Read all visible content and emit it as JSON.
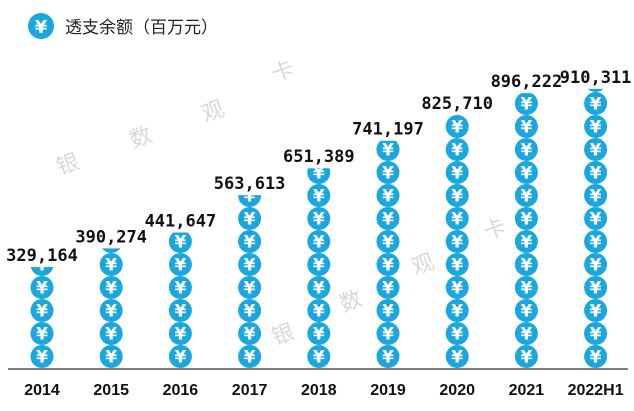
{
  "legend": {
    "icon": "yuan-coin-icon",
    "label": "透支余额（百万元）"
  },
  "colors": {
    "coin": "#1aa7df",
    "coin_symbol": "#ffffff",
    "axis": "#555555"
  },
  "watermarks": [
    "银",
    "数",
    "观",
    "卡",
    "银",
    "数",
    "观",
    "卡"
  ],
  "chart_data": {
    "type": "bar",
    "title": "透支余额（百万元）",
    "xlabel": "",
    "ylabel": "",
    "categories": [
      "2014",
      "2015",
      "2016",
      "2017",
      "2018",
      "2019",
      "2020",
      "2021",
      "2022H1"
    ],
    "values": [
      329164,
      390274,
      441647,
      563613,
      651389,
      741197,
      825710,
      896222,
      910311
    ],
    "value_labels": [
      "329,164",
      "390,274",
      "441,647",
      "563,613",
      "651,389",
      "741,197",
      "825,710",
      "896,222",
      "910,311"
    ],
    "grid": false,
    "legend_position": "top-left"
  }
}
